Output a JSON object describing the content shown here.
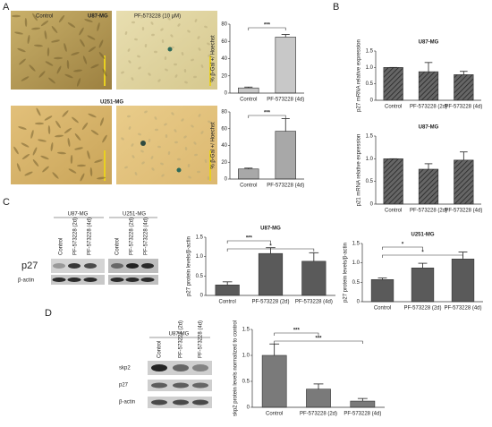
{
  "figure": {
    "panel_letters": [
      "A",
      "B",
      "C",
      "D"
    ],
    "micrographs": {
      "columns": [
        "Control",
        "PF-573228 (10 μM)"
      ],
      "rows": [
        "U87-MG",
        "U251-MG"
      ]
    },
    "blot_c": {
      "groups": [
        {
          "name": "U87-MG",
          "lanes": [
            "Control",
            "PF-573228 (2d)",
            "PF-573228 (4d)"
          ]
        },
        {
          "name": "U251-MG",
          "lanes": [
            "Control",
            "PF-573228 (2d)",
            "PF-573228 (4d)"
          ]
        }
      ],
      "rows": [
        "p27",
        "β-actin"
      ]
    },
    "blot_d": {
      "group": "U87-MG",
      "lanes": [
        "Control",
        "PF-573228 (2d)",
        "PF-573228 (4d)"
      ],
      "rows": [
        "skp2",
        "p27",
        "β-actin"
      ]
    }
  },
  "chart_data": [
    {
      "type": "bar",
      "ylabel": "% β-Gal +/ Hoechst",
      "categories": [
        "Control",
        "PF-573228 (4d)"
      ],
      "values": [
        6,
        65
      ],
      "errors": [
        1,
        3
      ],
      "colors": [
        "#c8c8c8",
        "#c8c8c8"
      ],
      "ylim": [
        0,
        80
      ],
      "yticks": [
        0,
        20,
        40,
        60,
        80
      ],
      "annotations": [
        {
          "text": "***",
          "from": "Control",
          "to": "PF-573228 (4d)"
        }
      ]
    },
    {
      "type": "bar",
      "ylabel": "% β-Gal +/ Hoechst",
      "categories": [
        "Control",
        "PF-573228 (4d)"
      ],
      "values": [
        12,
        57
      ],
      "errors": [
        1,
        15
      ],
      "colors": [
        "#a8a8a8",
        "#a8a8a8"
      ],
      "ylim": [
        0,
        80
      ],
      "yticks": [
        0,
        20,
        40,
        60,
        80
      ],
      "annotations": [
        {
          "text": "***",
          "from": "Control",
          "to": "PF-573228 (4d)"
        }
      ]
    },
    {
      "type": "bar",
      "title": "U87-MG",
      "ylabel": "p27 mRNA relative expression",
      "categories": [
        "Control",
        "PF-573228 (2d)",
        "PF-573228 (4d)"
      ],
      "values": [
        1.0,
        0.87,
        0.78
      ],
      "errors": [
        0,
        0.28,
        0.1
      ],
      "colors": [
        "#555555",
        "#555555",
        "#555555"
      ],
      "hatch": true,
      "ylim": [
        0,
        1.5
      ],
      "yticks": [
        0,
        {
          "value": 0.5,
          "label": "0.5"
        },
        {
          "value": 1,
          "label": "1.0"
        },
        {
          "value": 1.5,
          "label": "1.5"
        }
      ],
      "annotations": []
    },
    {
      "type": "bar",
      "title": "U87-MG",
      "ylabel": "p21 mRNA relative expression",
      "categories": [
        "Control",
        "PF-573228 (2d)",
        "PF-573228 (4d)"
      ],
      "values": [
        1.0,
        0.77,
        0.97
      ],
      "errors": [
        0,
        0.12,
        0.18
      ],
      "colors": [
        "#555555",
        "#555555",
        "#555555"
      ],
      "hatch": true,
      "ylim": [
        0,
        1.5
      ],
      "yticks": [
        0,
        {
          "value": 0.5,
          "label": "0.5"
        },
        {
          "value": 1,
          "label": "1.0"
        },
        {
          "value": 1.5,
          "label": "1.5"
        }
      ],
      "annotations": []
    },
    {
      "type": "bar",
      "title": "U87-MG",
      "ylabel": "p27 protein levels/β-actin",
      "categories": [
        "Control",
        "PF-573228 (2d)",
        "PF-573228 (4d)"
      ],
      "values": [
        0.27,
        1.08,
        0.88
      ],
      "errors": [
        0.08,
        0.15,
        0.22
      ],
      "colors": [
        "#5a5a5a",
        "#5a5a5a",
        "#5a5a5a"
      ],
      "ylim": [
        0,
        1.5
      ],
      "yticks": [
        0,
        {
          "value": 0.5,
          "label": "0.5"
        },
        {
          "value": 1,
          "label": "1.0"
        },
        {
          "value": 1.5,
          "label": "1.5"
        }
      ],
      "annotations": [
        {
          "text": "***",
          "from": "Control",
          "to": "PF-573228 (2d)"
        },
        {
          "text": "*",
          "from": "Control",
          "to": "PF-573228 (4d)"
        }
      ]
    },
    {
      "type": "bar",
      "title": "U251-MG",
      "ylabel": "p27 protein levels/β-actin",
      "categories": [
        "Control",
        "PF-573228 (2d)",
        "PF-573228 (4d)"
      ],
      "values": [
        0.57,
        0.87,
        1.1
      ],
      "errors": [
        0.04,
        0.12,
        0.18
      ],
      "colors": [
        "#5a5a5a",
        "#5a5a5a",
        "#5a5a5a"
      ],
      "ylim": [
        0,
        1.5
      ],
      "yticks": [
        0,
        {
          "value": 0.5,
          "label": "0.5"
        },
        {
          "value": 1,
          "label": "1.0"
        },
        {
          "value": 1.5,
          "label": "1.5"
        }
      ],
      "annotations": [
        {
          "text": "*",
          "from": "Control",
          "to": "PF-573228 (2d)"
        },
        {
          "text": "*",
          "from": "Control",
          "to": "PF-573228 (4d)"
        }
      ]
    },
    {
      "type": "bar",
      "ylabel": "skp2 protein levels normalized to control",
      "categories": [
        "Control",
        "PF-573228 (2d)",
        "PF-573228 (4d)"
      ],
      "values": [
        1.0,
        0.35,
        0.12
      ],
      "errors": [
        0.22,
        0.1,
        0.05
      ],
      "colors": [
        "#7a7a7a",
        "#7a7a7a",
        "#7a7a7a"
      ],
      "ylim": [
        0,
        1.5
      ],
      "yticks": [
        0,
        {
          "value": 0.5,
          "label": "0.5"
        },
        {
          "value": 1,
          "label": "1.0"
        },
        {
          "value": 1.5,
          "label": "1.5"
        }
      ],
      "annotations": [
        {
          "text": "***",
          "from": "Control",
          "to": "PF-573228 (2d)"
        },
        {
          "text": "***",
          "from": "Control",
          "to": "PF-573228 (4d)"
        }
      ]
    }
  ]
}
